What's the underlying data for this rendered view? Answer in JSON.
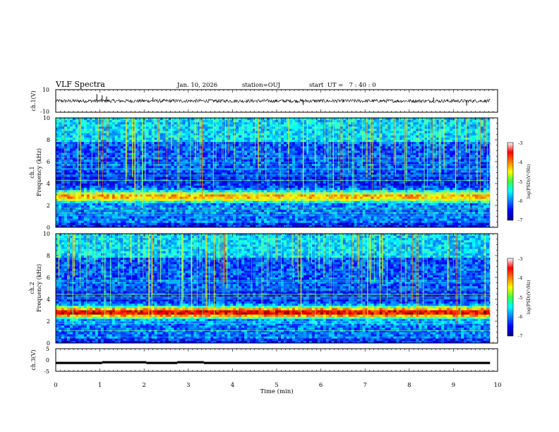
{
  "header": {
    "title": "VLF Spectra",
    "date": "Jan. 10, 2026",
    "station": "station=OUJ",
    "start": "start  UT =   7 : 40 : 0"
  },
  "chart_data": [
    {
      "id": "ch1_waveform",
      "type": "line",
      "ylabel": "ch.1(V)",
      "ylim": [
        -10,
        10
      ],
      "y_ticks": [
        "10",
        "-10"
      ],
      "baseline": 0,
      "noise_amplitude": 1.5,
      "spikes": [
        {
          "t": 0.93,
          "v": 6
        },
        {
          "t": 1.05,
          "v": 5
        },
        {
          "t": 1.15,
          "v": 4
        },
        {
          "t": 2.2,
          "v": 3
        },
        {
          "t": 5.6,
          "v": -3.5
        },
        {
          "t": 8.55,
          "v": 3
        },
        {
          "t": 9.3,
          "v": -4
        }
      ],
      "xlim": [
        0,
        9.83
      ]
    },
    {
      "id": "ch1_spectrogram",
      "type": "heatmap",
      "ylabel": "ch.1",
      "ylabel2": "Frequency (kHz)",
      "ylim": [
        0,
        10
      ],
      "y_ticks": [
        "0",
        "2",
        "4",
        "6",
        "8",
        "10"
      ],
      "xlim": [
        0,
        9.83
      ],
      "band_center_khz": 2.8,
      "band_strength": 0.55,
      "colorbar": {
        "label": "log(PSD)(V²/Hz)",
        "range": [
          -7,
          -3
        ],
        "ticks": [
          "-3",
          "-4",
          "-5",
          "-6",
          "-7"
        ]
      }
    },
    {
      "id": "ch2_spectrogram",
      "type": "heatmap",
      "ylabel": "ch.2",
      "ylabel2": "Frequency (kHz)",
      "ylim": [
        0,
        10
      ],
      "y_ticks": [
        "0",
        "2",
        "4",
        "6",
        "8",
        "10"
      ],
      "xlim": [
        0,
        9.83
      ],
      "band_center_khz": 2.8,
      "band_strength": 0.75,
      "colorbar": {
        "label": "log(PSD)(V²/Hz)",
        "range": [
          -7,
          -3
        ],
        "ticks": [
          "-3",
          "-4",
          "-5",
          "-6",
          "-7"
        ]
      }
    },
    {
      "id": "ch3_waveform",
      "type": "line",
      "ylabel": "ch.3(V)",
      "ylim": [
        -5,
        5
      ],
      "y_ticks": [
        "5",
        "0",
        "-5"
      ],
      "segments": [
        {
          "t0": 0.0,
          "t1": 1.05,
          "v": -1.3
        },
        {
          "t0": 1.05,
          "t1": 2.05,
          "v": -1.0
        },
        {
          "t0": 2.05,
          "t1": 2.75,
          "v": -1.3
        },
        {
          "t0": 2.75,
          "t1": 3.35,
          "v": -1.0
        },
        {
          "t0": 3.35,
          "t1": 9.83,
          "v": -1.3
        }
      ],
      "xlim": [
        0,
        9.83
      ]
    }
  ],
  "x_axis": {
    "label": "Time (min)",
    "range": [
      0,
      10
    ],
    "ticks": [
      "0",
      "1",
      "2",
      "3",
      "4",
      "5",
      "6",
      "7",
      "8",
      "9",
      "10"
    ]
  },
  "colors": {
    "axis": "#000000",
    "trace": "#000000",
    "background": "#ffffff"
  }
}
